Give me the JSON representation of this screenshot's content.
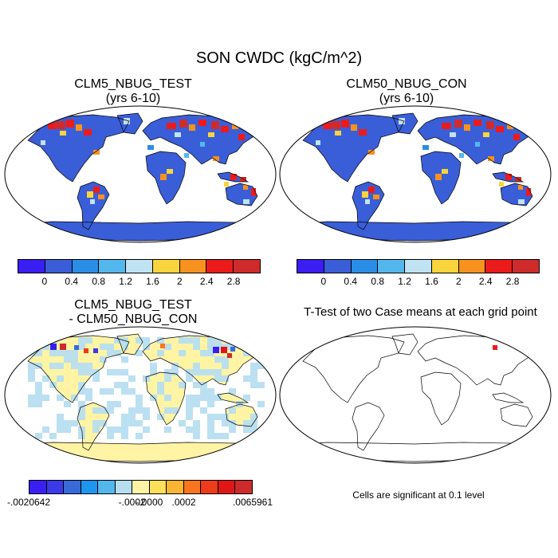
{
  "title": "SON CWDC (kgC/m^2)",
  "panels": [
    {
      "title": "CLM5_NBUG_TEST",
      "subtitle": "(yrs 6-10)"
    },
    {
      "title": "CLM50_NBUG_CON",
      "subtitle": "(yrs 6-10)"
    },
    {
      "title": "CLM5_NBUG_TEST",
      "subtitle": "- CLM50_NBUG_CON"
    },
    {
      "title": "T-Test of two Case means at each grid point",
      "subtitle": ""
    }
  ],
  "colorbar_abs": {
    "colors": [
      "#3a1ef2",
      "#3a5ed8",
      "#2a8ee9",
      "#54b7ec",
      "#bfe3f2",
      "#f9d43c",
      "#f7921e",
      "#ec1b1b",
      "#cf2b2b"
    ],
    "labels": [
      "0",
      "0.4",
      "0.8",
      "1.2",
      "1.6",
      "2",
      "2.4",
      "2.8"
    ]
  },
  "colorbar_diff": {
    "colors": [
      "#3a1ef2",
      "#3a3ae6",
      "#3a6ad8",
      "#1f96ee",
      "#54b7ec",
      "#b7def0",
      "#fff4a4",
      "#fce05a",
      "#f9b533",
      "#f7761e",
      "#ee3b1a",
      "#e01717",
      "#cd2b2b"
    ],
    "labels": [
      "-.0020642",
      "-.0002",
      "-.0000",
      ".0002",
      ".0065961"
    ]
  },
  "significance_note": "Cells are significant at 0.1 level"
}
